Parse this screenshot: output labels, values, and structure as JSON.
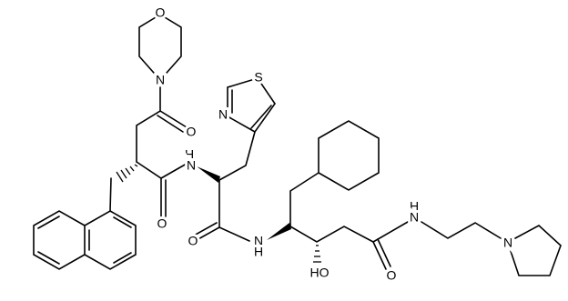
{
  "atoms": [
    "O",
    "N",
    "O",
    "N",
    "S",
    "H",
    "N",
    "O",
    "O",
    "N",
    "H",
    "HO",
    "O",
    "H",
    "N",
    "N"
  ]
}
